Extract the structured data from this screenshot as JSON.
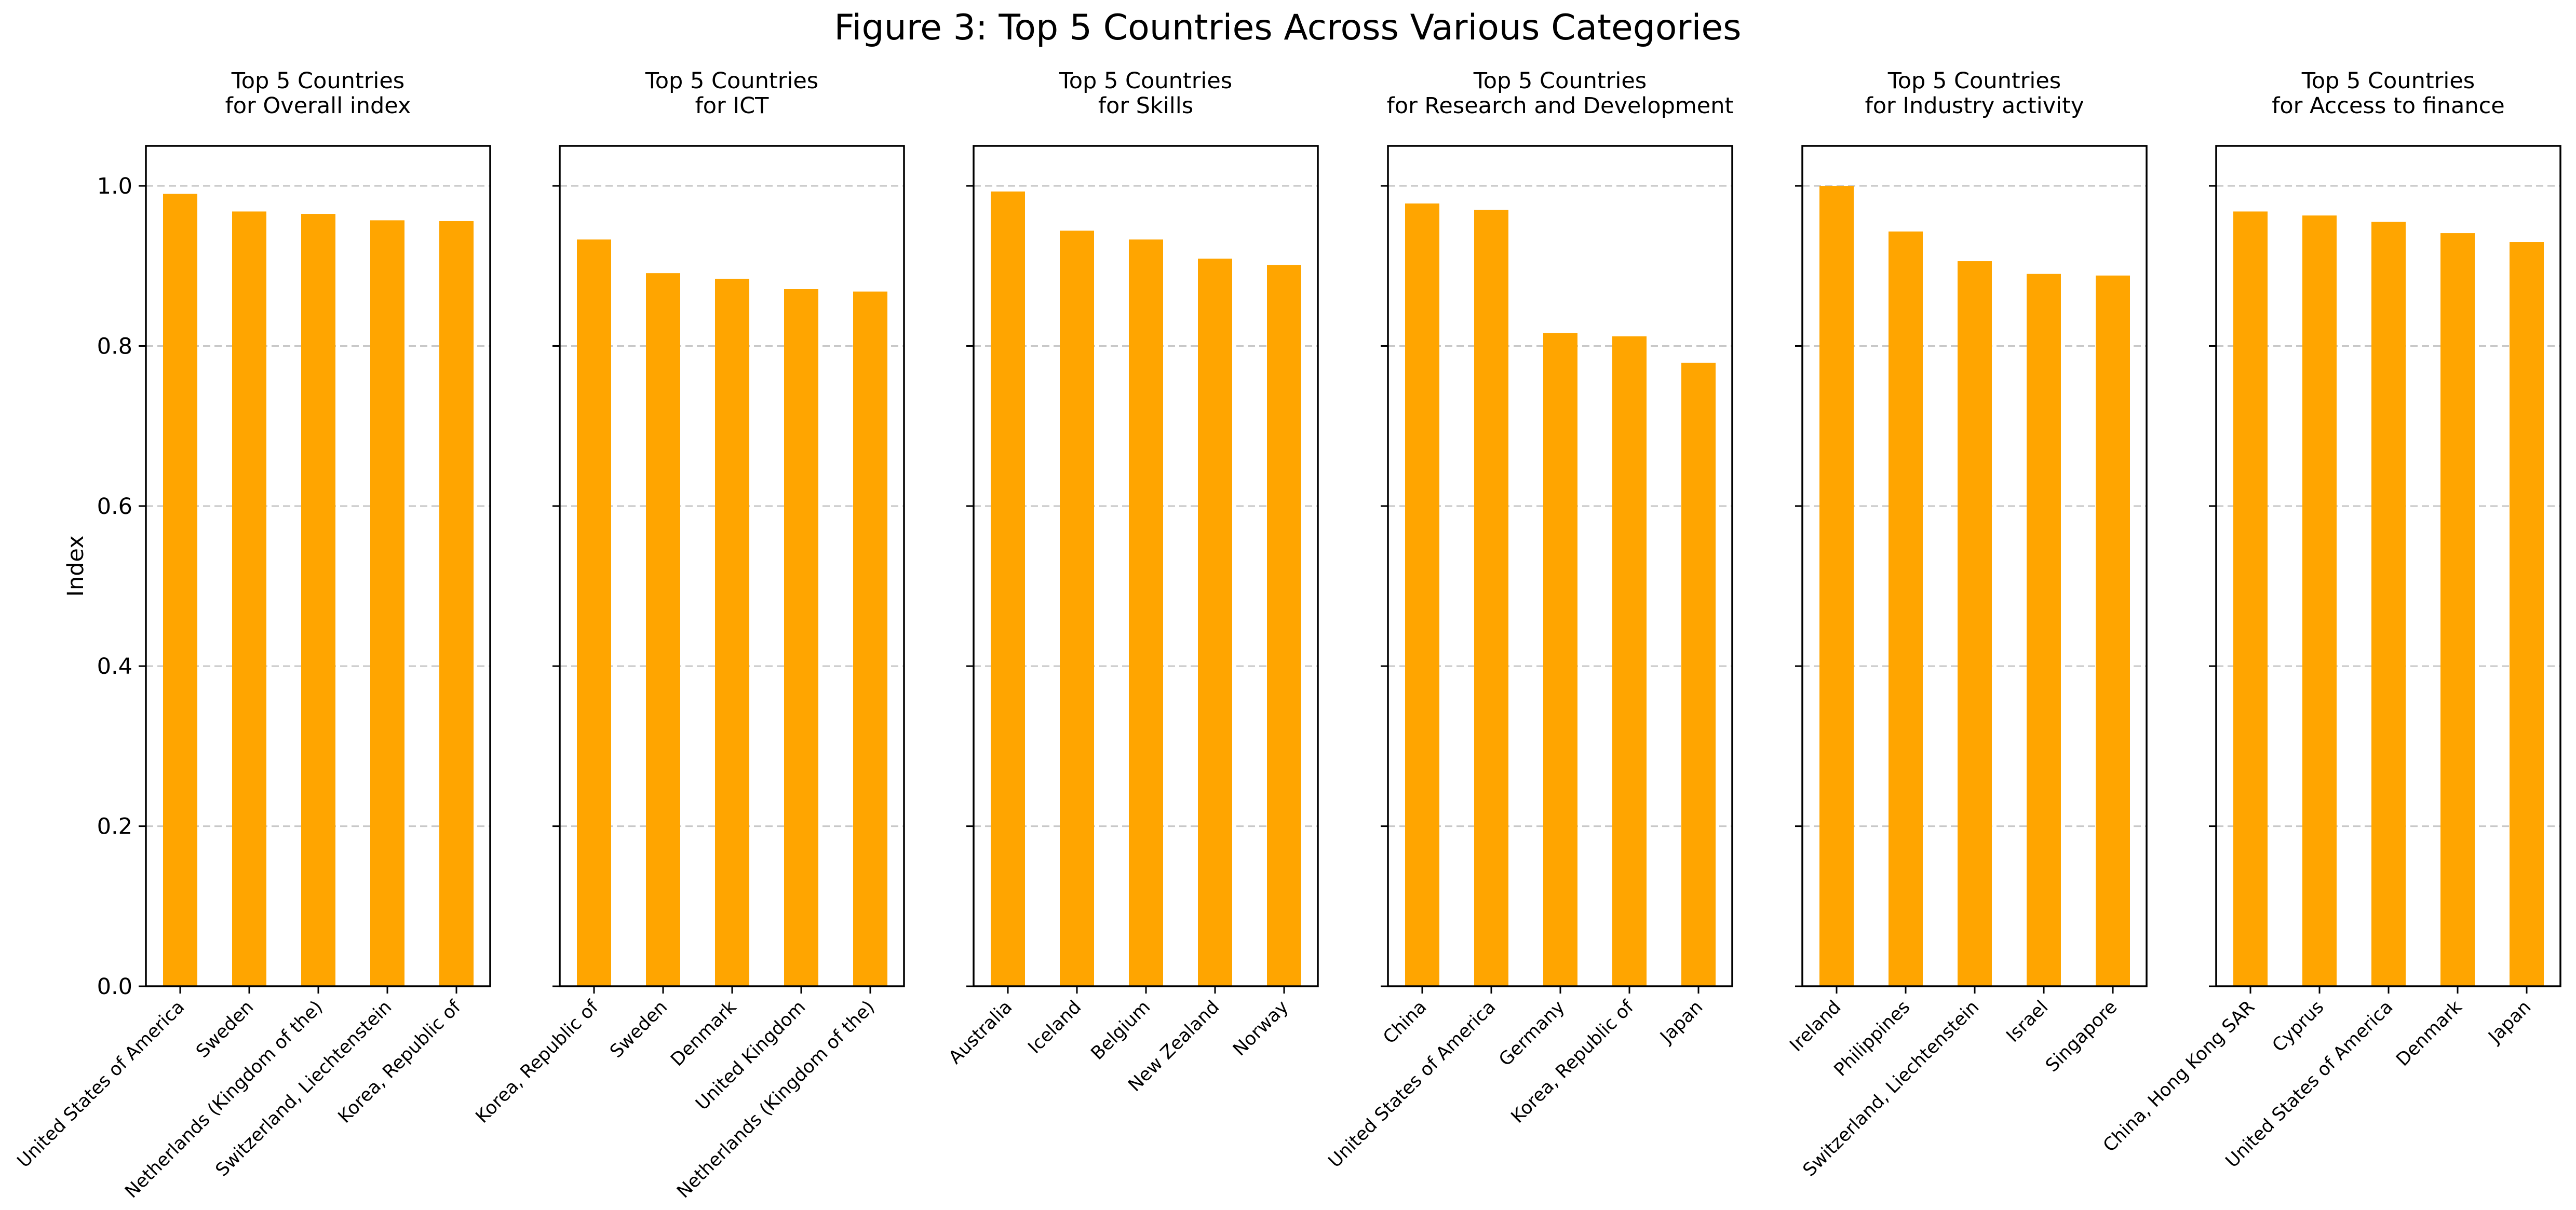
{
  "figure": {
    "title": "Figure 3: Top 5 Countries Across Various Categories"
  },
  "colors": {
    "bar": "#ffa500",
    "grid": "#c8c8c8",
    "frame": "#000000"
  },
  "chart_data": [
    {
      "type": "bar",
      "title": "Top 5 Countries\nfor Overall index",
      "ylabel": "Index",
      "ylim": [
        0,
        1.05
      ],
      "yticks": [
        "0.0",
        "0.2",
        "0.4",
        "0.6",
        "0.8",
        "1.0"
      ],
      "grid": "y-dashed",
      "categories": [
        "United States of America",
        "Sweden",
        "Netherlands (Kingdom of the)",
        "Switzerland, Liechtenstein",
        "Korea, Republic of"
      ],
      "values": [
        0.99,
        0.968,
        0.965,
        0.957,
        0.956
      ]
    },
    {
      "type": "bar",
      "title": "Top 5 Countries\nfor ICT",
      "ylabel": "",
      "ylim": [
        0,
        1.05
      ],
      "grid": "y-dashed",
      "categories": [
        "Korea, Republic of",
        "Sweden",
        "Denmark",
        "United Kingdom",
        "Netherlands (Kingdom of the)"
      ],
      "values": [
        0.933,
        0.891,
        0.884,
        0.871,
        0.868
      ]
    },
    {
      "type": "bar",
      "title": "Top 5 Countries\nfor Skills",
      "ylabel": "",
      "ylim": [
        0,
        1.05
      ],
      "grid": "y-dashed",
      "categories": [
        "Australia",
        "Iceland",
        "Belgium",
        "New Zealand",
        "Norway"
      ],
      "values": [
        0.993,
        0.944,
        0.933,
        0.909,
        0.901
      ]
    },
    {
      "type": "bar",
      "title": "Top 5 Countries\nfor Research and Development",
      "ylabel": "",
      "ylim": [
        0,
        1.05
      ],
      "grid": "y-dashed",
      "categories": [
        "China",
        "United States of America",
        "Germany",
        "Korea, Republic of",
        "Japan"
      ],
      "values": [
        0.978,
        0.97,
        0.816,
        0.812,
        0.779
      ]
    },
    {
      "type": "bar",
      "title": "Top 5 Countries\nfor Industry activity",
      "ylabel": "",
      "ylim": [
        0,
        1.05
      ],
      "grid": "y-dashed",
      "categories": [
        "Ireland",
        "Philippines",
        "Switzerland, Liechtenstein",
        "Israel",
        "Singapore"
      ],
      "values": [
        1.0,
        0.943,
        0.906,
        0.89,
        0.888
      ]
    },
    {
      "type": "bar",
      "title": "Top 5 Countries\nfor Access to finance",
      "ylabel": "",
      "ylim": [
        0,
        1.05
      ],
      "grid": "y-dashed",
      "categories": [
        "China, Hong Kong SAR",
        "Cyprus",
        "United States of America",
        "Denmark",
        "Japan"
      ],
      "values": [
        0.968,
        0.963,
        0.955,
        0.941,
        0.93
      ]
    }
  ]
}
